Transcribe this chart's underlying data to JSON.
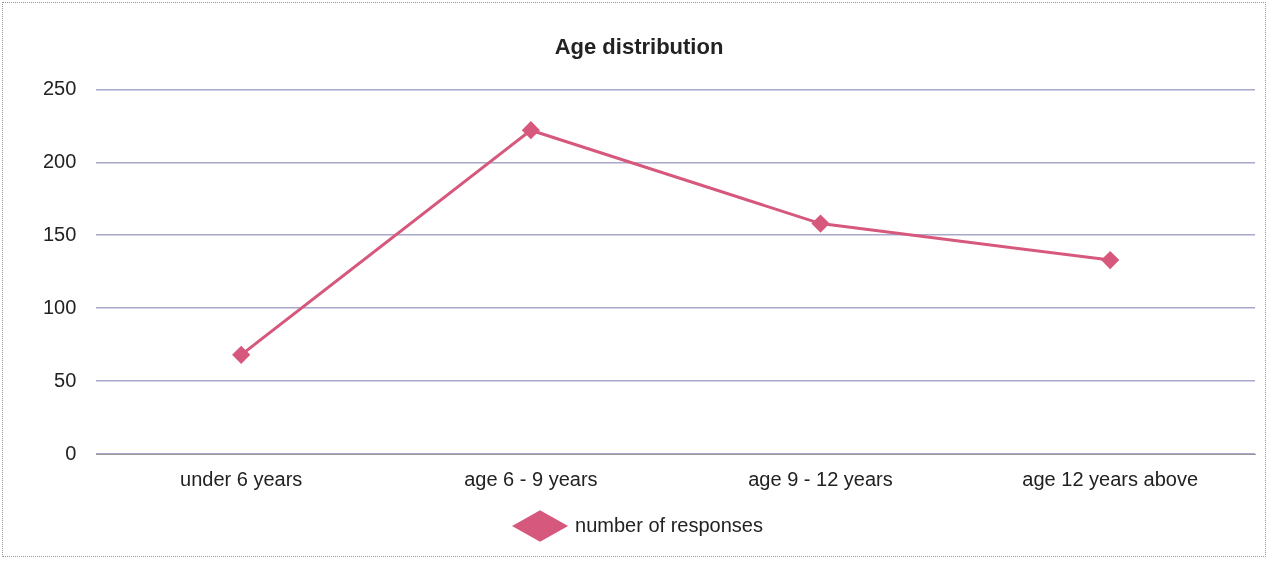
{
  "chart_data": {
    "type": "line",
    "title": "Age distribution",
    "categories": [
      "under 6 years",
      "age 6 - 9 years",
      "age 9 - 12 years",
      "age 12 years above"
    ],
    "series": [
      {
        "name": "number of responses",
        "color": "#d6587c",
        "values": [
          68,
          222,
          158,
          133
        ]
      }
    ],
    "ylim": [
      0,
      250
    ],
    "yticks": [
      0,
      50,
      100,
      150,
      200,
      250
    ],
    "grid": "y",
    "legend": "bottom",
    "marker": "diamond",
    "line_style": "solid"
  }
}
